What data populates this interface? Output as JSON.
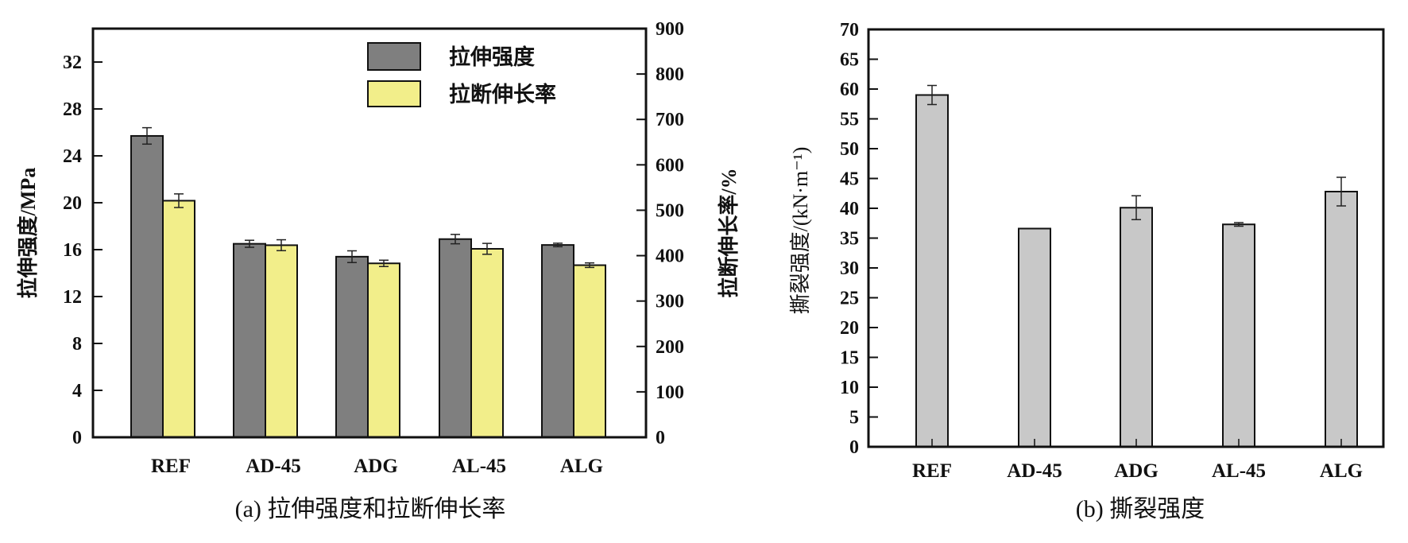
{
  "chart_data": [
    {
      "type": "bar",
      "caption": "(a) 拉伸强度和拉断伸长率",
      "categories": [
        "REF",
        "AD-45",
        "ADG",
        "AL-45",
        "ALG"
      ],
      "ylabel": "拉伸强度/MPa",
      "y2label": "拉断伸长率/%",
      "ylim": [
        0,
        34.85
      ],
      "y2lim": [
        0,
        900
      ],
      "yticks": [
        0,
        4,
        8,
        12,
        16,
        20,
        24,
        28,
        32
      ],
      "y2ticks": [
        0,
        100,
        200,
        300,
        400,
        500,
        600,
        700,
        800,
        900
      ],
      "legend_position": "top-right",
      "series": [
        {
          "name": "拉伸强度",
          "axis": "left",
          "color": "#7f7f7f",
          "values": [
            25.7,
            16.5,
            15.4,
            16.9,
            16.4
          ],
          "errors": [
            0.7,
            0.3,
            0.5,
            0.4,
            0.15
          ]
        },
        {
          "name": "拉断伸长率",
          "axis": "right",
          "color": "#f2ee8a",
          "values": [
            521,
            423,
            383,
            415,
            379
          ],
          "errors": [
            15,
            12,
            7,
            12,
            5
          ]
        }
      ]
    },
    {
      "type": "bar",
      "caption": "(b) 撕裂强度",
      "categories": [
        "REF",
        "AD-45",
        "ADG",
        "AL-45",
        "ALG"
      ],
      "ylabel": "撕裂强度/(kN·m⁻¹)",
      "ylim": [
        0,
        70
      ],
      "yticks": [
        0,
        5,
        10,
        15,
        20,
        25,
        30,
        35,
        40,
        45,
        50,
        55,
        60,
        65,
        70
      ],
      "series": [
        {
          "name": "撕裂强度",
          "color": "#c8c8c8",
          "values": [
            59.0,
            36.6,
            40.1,
            37.3,
            42.8
          ],
          "errors": [
            1.6,
            0,
            2.0,
            0.3,
            2.4
          ]
        }
      ]
    }
  ]
}
